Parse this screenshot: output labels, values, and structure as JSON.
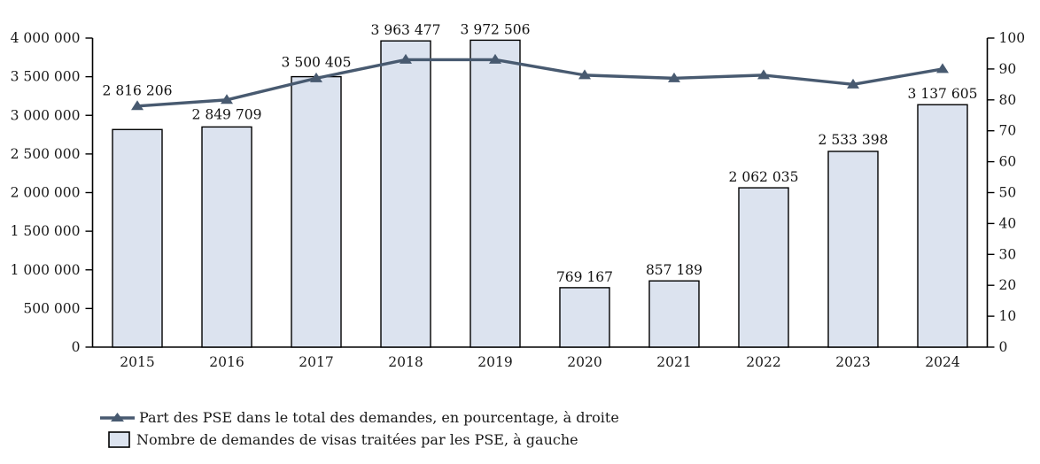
{
  "chart_data": {
    "type": "combo",
    "categories": [
      "2015",
      "2016",
      "2017",
      "2018",
      "2019",
      "2020",
      "2021",
      "2022",
      "2023",
      "2024"
    ],
    "series": [
      {
        "name": "Nombre de demandes de visas traitées par les PSE, à gauche",
        "type": "bar",
        "axis": "left",
        "values": [
          2816206,
          2849709,
          3500405,
          3963477,
          3972506,
          769167,
          857189,
          2062035,
          2533398,
          3137605
        ]
      },
      {
        "name": "Part des PSE dans le total des demandes, en pourcentage, à droite",
        "type": "line",
        "axis": "right",
        "values": [
          78,
          80,
          87,
          93,
          93,
          88,
          87,
          88,
          85,
          90
        ]
      }
    ],
    "left_axis": {
      "min": 0,
      "max": 4000000,
      "step": 500000
    },
    "right_axis": {
      "min": 0,
      "max": 100,
      "step": 10
    },
    "title": "",
    "xlabel": "",
    "ylabel": "",
    "grid": false,
    "bar_labels_visible": true,
    "legend_position": "bottom-left",
    "label_baseline_dy": [
      -39,
      -9,
      -11,
      -7,
      -7,
      -7,
      -7,
      -7,
      -8,
      -7
    ],
    "colors": {
      "bar_fill": "#dce3ef",
      "bar_border": "#000000",
      "line": "#485a70",
      "axis": "#000000",
      "text": "#1a1a1a"
    }
  }
}
